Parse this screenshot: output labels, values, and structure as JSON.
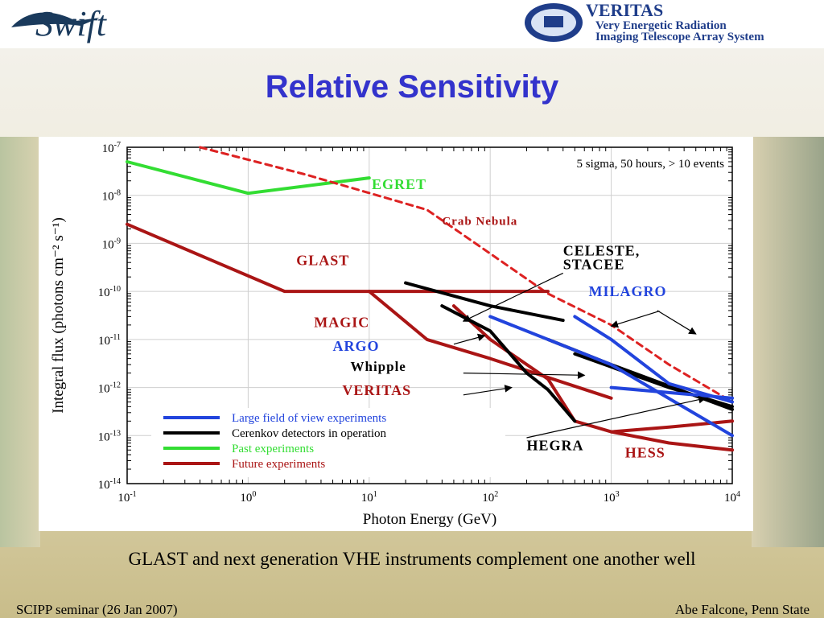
{
  "slide": {
    "title": "Relative Sensitivity",
    "caption": "GLAST and next generation VHE instruments complement one another well",
    "footer_left": "SCIPP seminar (26 Jan 2007)",
    "footer_right": "Abe Falcone, Penn State",
    "title_color": "#3333cc"
  },
  "logos": {
    "left_text": "Swift",
    "right_name": "VERITAS",
    "right_line1": "Very Energetic Radiation",
    "right_line2": "Imaging Telescope Array System"
  },
  "chart_data": {
    "type": "line",
    "xscale": "log",
    "yscale": "log",
    "xlim": [
      0.1,
      10000
    ],
    "ylim": [
      1e-14,
      1e-07
    ],
    "xlabel": "Photon Energy (GeV)",
    "ylabel": "Integral flux (photons cm⁻² s⁻¹)",
    "x_ticks": [
      0.1,
      1,
      10,
      100,
      1000,
      10000
    ],
    "x_tick_labels": [
      {
        "b": "10",
        "e": "-1"
      },
      {
        "b": "10",
        "e": "0"
      },
      {
        "b": "10",
        "e": "1"
      },
      {
        "b": "10",
        "e": "2"
      },
      {
        "b": "10",
        "e": "3"
      },
      {
        "b": "10",
        "e": "4"
      }
    ],
    "y_ticks": [
      1e-07,
      1e-08,
      1e-09,
      1e-10,
      1e-11,
      1e-12,
      1e-13,
      1e-14
    ],
    "y_tick_labels": [
      {
        "b": "10",
        "e": "-7"
      },
      {
        "b": "10",
        "e": "-8"
      },
      {
        "b": "10",
        "e": "-9"
      },
      {
        "b": "10",
        "e": "-10"
      },
      {
        "b": "10",
        "e": "-11"
      },
      {
        "b": "10",
        "e": "-12"
      },
      {
        "b": "10",
        "e": "-13"
      },
      {
        "b": "10",
        "e": "-14"
      }
    ],
    "grid": "major",
    "subtitle": "5 sigma, 50 hours,  > 10 events",
    "colors": {
      "large_fov": "#2244dd",
      "cerenkov": "#000000",
      "past": "#33dd33",
      "future": "#aa1515"
    },
    "legend": {
      "placement": "bottom-left",
      "entries": [
        {
          "label": "Large field of view experiments",
          "color": "#2244dd"
        },
        {
          "label": "Cerenkov detectors in operation",
          "color": "#000000"
        },
        {
          "label": "Past experiments",
          "color": "#33dd33"
        },
        {
          "label": "Future experiments",
          "color": "#aa1515"
        }
      ]
    },
    "series": [
      {
        "group": "past",
        "color": "#33dd33",
        "points": [
          [
            0.1,
            5e-08
          ],
          [
            1,
            1.1e-08
          ],
          [
            10,
            2.3e-08
          ]
        ]
      },
      {
        "group": "crab",
        "color": "#dd2222",
        "dashed": true,
        "points": [
          [
            0.4,
            1e-07
          ],
          [
            3,
            2.7e-08
          ],
          [
            30,
            5e-09
          ],
          [
            300,
            9e-11
          ],
          [
            1000,
            2e-11
          ],
          [
            3000,
            3e-12
          ],
          [
            10000,
            5e-13
          ]
        ]
      },
      {
        "group": "future",
        "color": "#aa1515",
        "points": [
          [
            0.1,
            2.5e-09
          ],
          [
            2,
            1e-10
          ],
          [
            300,
            1e-10
          ]
        ]
      },
      {
        "group": "future",
        "color": "#aa1515",
        "points": [
          [
            10,
            1e-10
          ],
          [
            30,
            1e-11
          ],
          [
            100,
            4e-12
          ],
          [
            1000,
            6e-13
          ]
        ]
      },
      {
        "group": "future",
        "color": "#aa1515",
        "points": [
          [
            50,
            5e-11
          ],
          [
            100,
            1e-11
          ],
          [
            300,
            1.5e-12
          ],
          [
            500,
            2e-13
          ],
          [
            1000,
            1.2e-13
          ],
          [
            3000,
            7e-14
          ],
          [
            10000,
            5e-14
          ]
        ]
      },
      {
        "group": "future",
        "color": "#aa1515",
        "points": [
          [
            1000,
            1.2e-13
          ],
          [
            3000,
            1.5e-13
          ],
          [
            10000,
            2e-13
          ]
        ]
      },
      {
        "group": "cerenkov",
        "color": "#000000",
        "points": [
          [
            40,
            5e-11
          ],
          [
            100,
            1.5e-11
          ],
          [
            200,
            2e-12
          ],
          [
            300,
            9e-13
          ],
          [
            500,
            2e-13
          ]
        ]
      },
      {
        "group": "cerenkov",
        "color": "#000000",
        "points": [
          [
            20,
            1.5e-10
          ],
          [
            100,
            5e-11
          ],
          [
            400,
            2.5e-11
          ]
        ]
      },
      {
        "group": "cerenkov",
        "color": "#000000",
        "points": [
          [
            300,
            1e-11
          ],
          [
            1000,
            3e-12
          ],
          [
            10000,
            3.5e-13
          ]
        ]
      },
      {
        "group": "cerenkov",
        "color": "#000000",
        "points": [
          [
            500,
            5e-12
          ],
          [
            3000,
            1e-12
          ],
          [
            10000,
            4e-13
          ]
        ]
      },
      {
        "group": "large_fov",
        "color": "#2244dd",
        "points": [
          [
            100,
            3e-11
          ],
          [
            1000,
            3e-12
          ],
          [
            10000,
            1e-13
          ]
        ]
      },
      {
        "group": "large_fov",
        "color": "#2244dd",
        "points": [
          [
            500,
            3e-11
          ],
          [
            1000,
            1e-11
          ],
          [
            3000,
            1.2e-12
          ],
          [
            10000,
            5e-13
          ]
        ]
      },
      {
        "group": "large_fov",
        "color": "#2244dd",
        "points": [
          [
            1000,
            1e-12
          ],
          [
            10000,
            6e-13
          ]
        ]
      }
    ],
    "annotations": [
      {
        "text": "EGRET",
        "x": 10.5,
        "y": 1.35e-08,
        "color": "#33dd33",
        "size": 18
      },
      {
        "text": "Crab   Nebula",
        "x": 40,
        "y": 2.4e-09,
        "color": "#aa1515",
        "size": 15
      },
      {
        "text": "CELESTE,",
        "x": 400,
        "y": 5.6e-10,
        "color": "#000000",
        "size": 18
      },
      {
        "text": "STACEE",
        "x": 400,
        "y": 2.9e-10,
        "color": "#000000",
        "size": 18
      },
      {
        "text": "GLAST",
        "x": 2.5,
        "y": 3.5e-10,
        "color": "#aa1515",
        "size": 18
      },
      {
        "text": "MILAGRO",
        "x": 650,
        "y": 8e-11,
        "color": "#2244dd",
        "size": 18
      },
      {
        "text": "MAGIC",
        "x": 3.5,
        "y": 1.8e-11,
        "color": "#aa1515",
        "size": 18
      },
      {
        "text": "ARGO",
        "x": 5,
        "y": 5.8e-12,
        "color": "#2244dd",
        "size": 18
      },
      {
        "text": "Whipple",
        "x": 7,
        "y": 2.2e-12,
        "color": "#000000",
        "size": 17
      },
      {
        "text": "VERITAS",
        "x": 6,
        "y": 7e-13,
        "color": "#aa1515",
        "size": 18
      },
      {
        "text": "HEGRA",
        "x": 200,
        "y": 5e-14,
        "color": "#000000",
        "size": 18
      },
      {
        "text": "HESS",
        "x": 1300,
        "y": 3.5e-14,
        "color": "#aa1515",
        "size": 18
      }
    ],
    "arrows": [
      {
        "from": [
          400,
          2.4e-10
        ],
        "to": [
          60,
          2.4e-11
        ],
        "color": "#000000"
      },
      {
        "from": [
          2500,
          3.9e-11
        ],
        "to": [
          1000,
          1.9e-11
        ],
        "color": "#000000"
      },
      {
        "from": [
          2400,
          4e-11
        ],
        "to": [
          5000,
          1.3e-11
        ],
        "color": "#000000"
      },
      {
        "from": [
          50,
          8e-12
        ],
        "to": [
          90,
          1.2e-11
        ],
        "color": "#000000"
      },
      {
        "from": [
          60,
          2e-12
        ],
        "to": [
          600,
          1.8e-12
        ],
        "color": "#000000"
      },
      {
        "from": [
          60,
          7e-13
        ],
        "to": [
          150,
          1e-12
        ],
        "color": "#000000"
      },
      {
        "from": [
          200,
          9e-14
        ],
        "to": [
          6000,
          6e-13
        ],
        "color": "#000000"
      }
    ]
  }
}
